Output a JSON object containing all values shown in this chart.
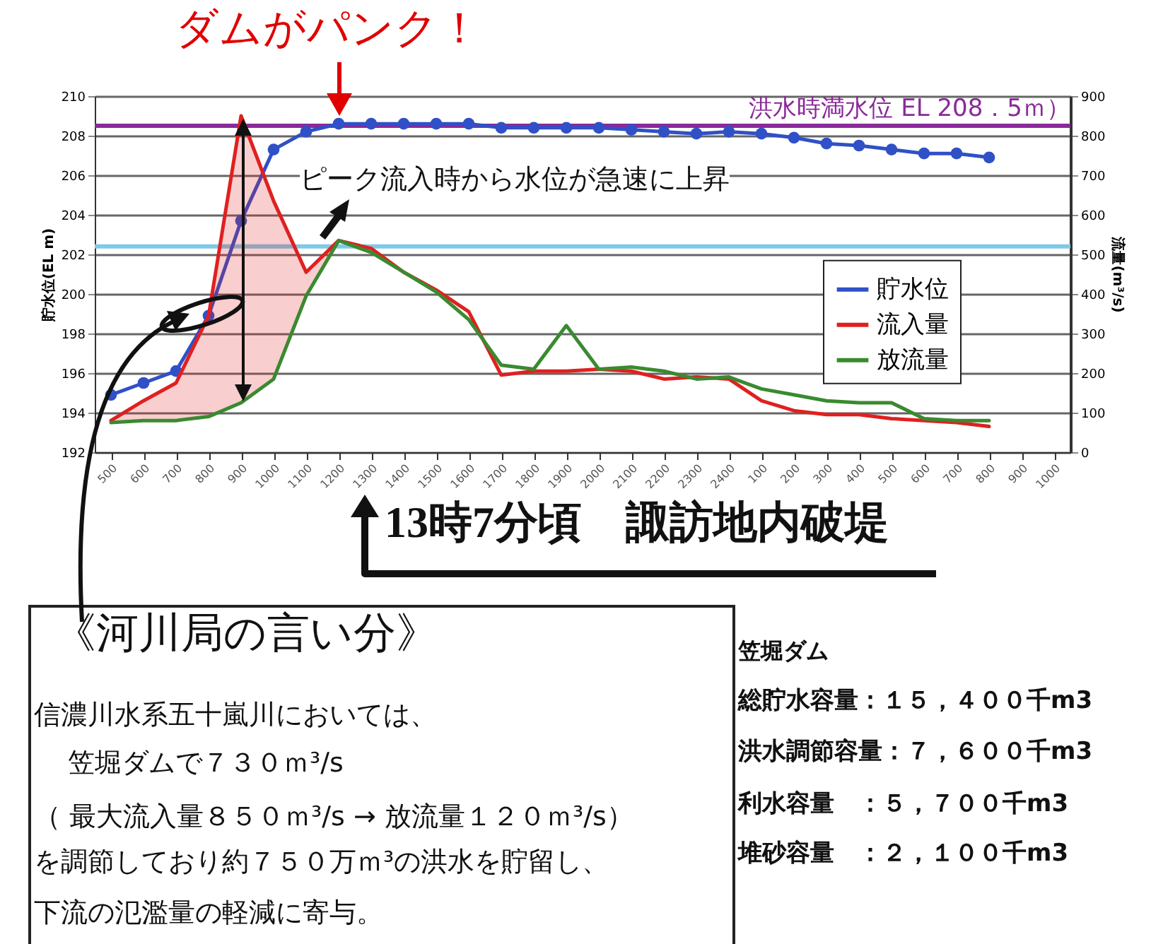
{
  "chart_data": {
    "type": "line",
    "title": "ダムがパンク！",
    "ylabel": "貯水位(EL m)",
    "y2label": "流量(m³/s)",
    "categories": [
      "500",
      "600",
      "700",
      "800",
      "900",
      "1000",
      "1100",
      "1200",
      "1300",
      "1400",
      "1500",
      "1600",
      "1700",
      "1800",
      "1900",
      "2000",
      "2100",
      "2200",
      "2300",
      "2400",
      "100",
      "200",
      "300",
      "400",
      "500",
      "600",
      "700",
      "800",
      "900",
      "1000"
    ],
    "series": [
      {
        "name": "貯水位",
        "color": "#3050c8",
        "marker": "circle",
        "values": [
          194.9,
          195.5,
          196.1,
          198.9,
          203.7,
          207.3,
          208.2,
          208.6,
          208.6,
          208.6,
          208.6,
          208.6,
          208.4,
          208.4,
          208.4,
          208.4,
          208.3,
          208.2,
          208.1,
          208.2,
          208.1,
          207.9,
          207.6,
          207.5,
          207.3,
          207.1,
          207.1,
          206.9,
          null,
          null
        ]
      },
      {
        "name": "流入量",
        "color": "#e02020",
        "axis": "y2",
        "values": [
          80,
          130,
          175,
          345,
          850,
          635,
          455,
          535,
          515,
          455,
          410,
          355,
          195,
          205,
          205,
          210,
          205,
          185,
          190,
          185,
          130,
          105,
          95,
          95,
          85,
          80,
          75,
          65,
          null,
          null
        ],
        "lower": [
          75,
          80,
          80,
          90,
          125,
          185,
          395,
          535,
          null,
          null,
          null,
          null,
          null,
          null,
          null,
          null,
          null,
          null,
          null,
          null,
          null,
          null,
          null,
          null,
          null,
          null,
          null,
          null,
          null,
          null
        ],
        "upper": [
          80,
          130,
          175,
          345,
          850,
          635,
          455,
          535,
          null,
          null,
          null,
          null,
          null,
          null,
          null,
          null,
          null,
          null,
          null,
          null,
          null,
          null,
          null,
          null,
          null,
          null,
          null,
          null,
          null,
          null
        ]
      },
      {
        "name": "放流量",
        "color": "#3a8a30",
        "axis": "y2",
        "values": [
          75,
          80,
          80,
          90,
          125,
          185,
          395,
          535,
          505,
          455,
          405,
          335,
          220,
          210,
          320,
          210,
          215,
          205,
          185,
          190,
          160,
          145,
          130,
          125,
          125,
          85,
          80,
          80,
          null,
          null
        ]
      }
    ],
    "ylim": [
      192,
      210
    ],
    "yticks": [
      192,
      194,
      196,
      198,
      200,
      202,
      204,
      206,
      208,
      210
    ],
    "y2lim": [
      0,
      900
    ],
    "y2ticks": [
      0,
      100,
      200,
      300,
      400,
      500,
      600,
      700,
      800,
      900
    ],
    "grid": "y",
    "legend": "right",
    "ref_lines": [
      {
        "axis": "y",
        "value": 208.5,
        "label": "洪水時満水位 EL 208．5ｍ）",
        "color": "#8a2a9a"
      },
      {
        "axis": "y",
        "value": 202.4,
        "color": "#80c8e8"
      }
    ],
    "annotations": [
      "ピーク流入時から水位が急速に上昇",
      "13時7分頃　諏訪地内破堤",
      "《河川局の言い分》",
      "信濃川水系五十嵐川においては、",
      "笠堀ダムで７３０ｍ³/s",
      "（ 最大流入量８５０ｍ³/s → 放流量１２０ｍ³/s）",
      "を調節しており約７５０万ｍ³の洪水を貯留し、",
      "下流の氾濫量の軽減に寄与。",
      "笠堀ダム",
      "総貯水容量：１５，４００千m3",
      "洪水調節容量：７，６００千m3",
      "利水容量　：５，７００千m3",
      "堆砂容量　：２，１００千m3"
    ]
  }
}
